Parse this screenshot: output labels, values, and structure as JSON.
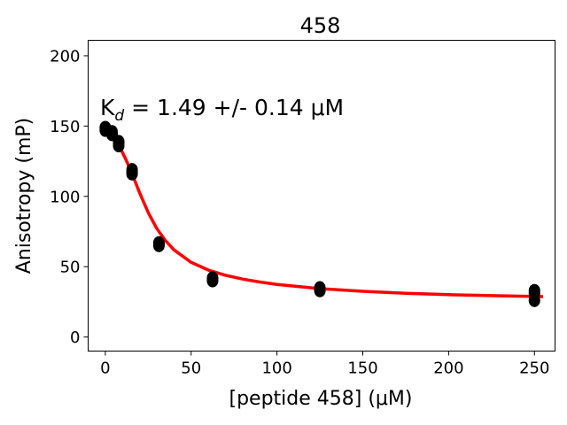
{
  "chart_data": {
    "type": "scatter",
    "title": "458",
    "xlabel": "[peptide 458] (μM)",
    "ylabel": "Anisotropy (mP)",
    "annotation": {
      "prefix": "K",
      "subscript": "d",
      "text": " = 1.49 +/- 0.14 μM"
    },
    "xlim": [
      -10,
      262
    ],
    "ylim": [
      -10,
      211
    ],
    "xticks": [
      0,
      50,
      100,
      150,
      200,
      250
    ],
    "yticks": [
      0,
      50,
      100,
      150,
      200
    ],
    "grid": false,
    "series": [
      {
        "kind": "points",
        "color": "#000000",
        "points": [
          [
            0,
            149
          ],
          [
            0,
            148
          ],
          [
            0,
            147
          ],
          [
            3.9,
            146
          ],
          [
            3.9,
            145
          ],
          [
            3.9,
            144
          ],
          [
            7.8,
            139
          ],
          [
            7.8,
            138
          ],
          [
            7.8,
            136
          ],
          [
            15.6,
            119
          ],
          [
            15.6,
            117
          ],
          [
            15.6,
            116
          ],
          [
            31.25,
            67
          ],
          [
            31.25,
            66
          ],
          [
            31.25,
            65
          ],
          [
            62.5,
            42
          ],
          [
            62.5,
            41
          ],
          [
            62.5,
            40
          ],
          [
            125,
            35
          ],
          [
            125,
            34
          ],
          [
            125,
            33
          ],
          [
            250,
            33
          ],
          [
            250,
            31
          ],
          [
            250,
            26
          ]
        ]
      },
      {
        "kind": "fit",
        "color": "#ff0000",
        "points": [
          [
            0,
            147.9
          ],
          [
            4,
            143.6
          ],
          [
            8,
            136.2
          ],
          [
            12,
            126.2
          ],
          [
            16,
            114.8
          ],
          [
            20,
            102.5
          ],
          [
            25,
            88.5
          ],
          [
            30,
            77.1
          ],
          [
            35,
            68.6
          ],
          [
            40,
            62.0
          ],
          [
            50,
            53.1
          ],
          [
            60,
            47.6
          ],
          [
            70,
            43.9
          ],
          [
            80,
            41.2
          ],
          [
            90,
            39.1
          ],
          [
            100,
            37.4
          ],
          [
            125,
            34.4
          ],
          [
            150,
            32.5
          ],
          [
            175,
            31.1
          ],
          [
            200,
            30.1
          ],
          [
            225,
            29.4
          ],
          [
            255,
            28.7
          ]
        ]
      }
    ]
  }
}
